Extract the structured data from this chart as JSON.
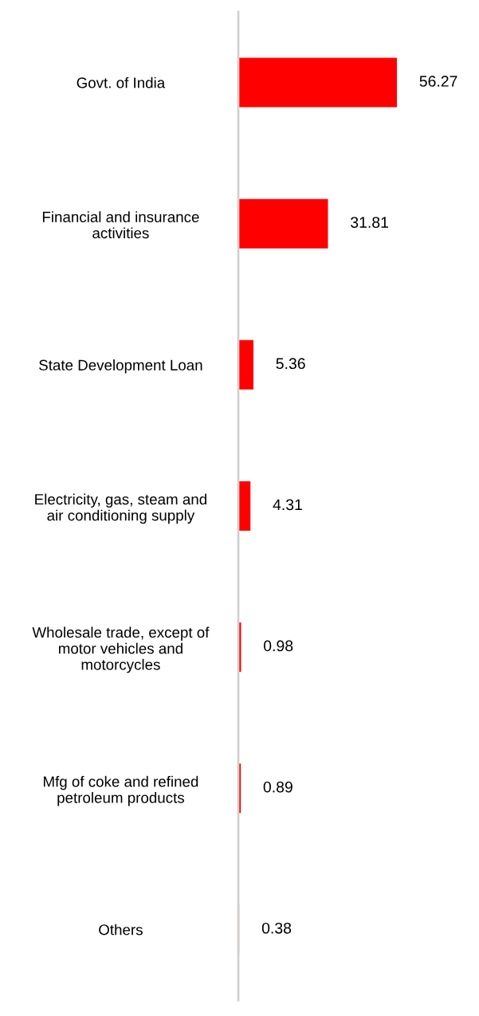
{
  "chart_data": {
    "type": "bar",
    "orientation": "horizontal",
    "categories": [
      "Govt. of India",
      "Financial and insurance\nactivities",
      "State Development Loan",
      "Electricity, gas, steam and\nair conditioning supply",
      "Wholesale trade, except of\nmotor vehicles and\nmotorcycles",
      "Mfg of coke and refined\npetroleum products",
      "Others"
    ],
    "values": [
      56.27,
      31.81,
      5.36,
      4.31,
      0.98,
      0.89,
      0.38
    ],
    "colors": [
      "#ff0000",
      "#ff0000",
      "#ff0000",
      "#ff0000",
      "#ff0000",
      "#ff0000",
      "#d8c8b0"
    ],
    "data_labels": true,
    "grid": false,
    "legend": false,
    "tick_labels": "y"
  }
}
